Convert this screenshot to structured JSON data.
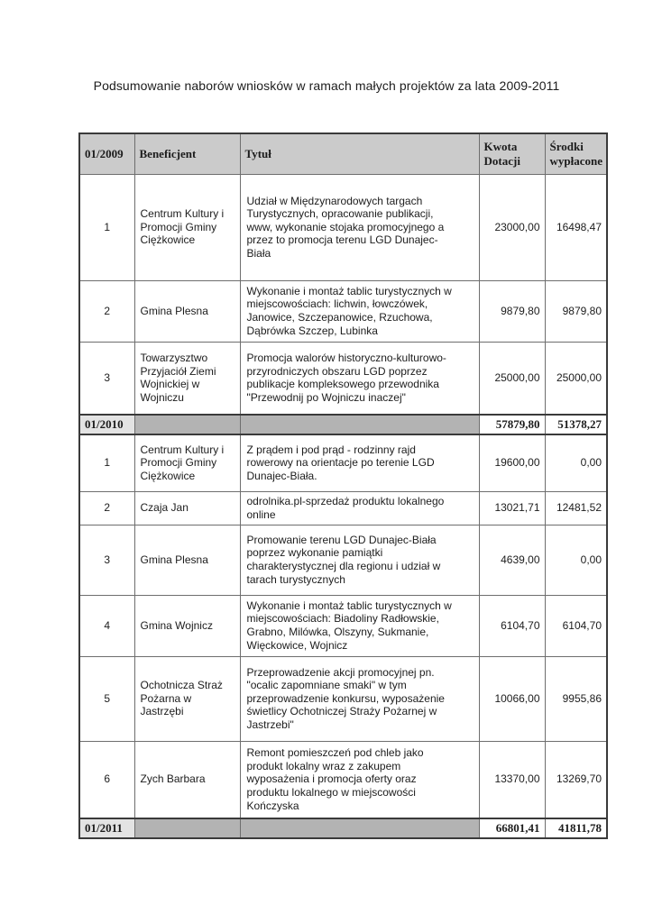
{
  "title": "Podsumowanie naborów wniosków w ramach małych projektów za lata 2009-2011",
  "table": {
    "header": {
      "period": "01/2009",
      "beneficiary": "Beneficjent",
      "project": "Tytuł",
      "grant": "Kwota Dotacji",
      "paid": "Środki wypłacone"
    },
    "rows_2009": [
      {
        "no": "1",
        "beneficiary": "Centrum Kultury i Promocji Gminy Ciężkowice",
        "project": "Udział w Międzynarodowych targach Turystycznych, opracowanie publikacji, www, wykonanie stojaka promocyjnego a przez to promocja terenu LGD Dunajec-Biała",
        "grant": "23000,00",
        "paid": "16498,47"
      },
      {
        "no": "2",
        "beneficiary": "Gmina Plesna",
        "project": "Wykonanie i montaż tablic turystycznych w miejscowościach: lichwin, łowczówek, Janowice, Szczepanowice, Rzuchowa, Dąbrówka Szczep, Lubinka",
        "grant": "9879,80",
        "paid": "9879,80"
      },
      {
        "no": "3",
        "beneficiary": "Towarzysztwo Przyjaciół Ziemi Wojnickiej w Wojniczu",
        "project": "Promocja walorów historyczno-kulturowo-przyrodniczych obszaru LGD poprzez publikacje kompleksowego przewodnika \"Przewodnij po Wojniczu inaczej\"",
        "grant": "25000,00",
        "paid": "25000,00"
      }
    ],
    "summary_2010": {
      "period": "01/2010",
      "grant": "57879,80",
      "paid": "51378,27"
    },
    "rows_2010": [
      {
        "no": "1",
        "beneficiary": "Centrum Kultury i Promocji Gminy Ciężkowice",
        "project": "Z prądem i pod prąd - rodzinny rajd rowerowy na orientacje po terenie LGD Dunajec-Biała.",
        "grant": "19600,00",
        "paid": "0,00"
      },
      {
        "no": "2",
        "beneficiary": "Czaja Jan",
        "project": "odrolnika.pl-sprzedaż produktu lokalnego online",
        "grant": "13021,71",
        "paid": "12481,52"
      },
      {
        "no": "3",
        "beneficiary": "Gmina Plesna",
        "project": "Promowanie terenu LGD Dunajec-Biała poprzez wykonanie pamiątki charakterystycznej dla regionu i udział w tarach turystycznych",
        "grant": "4639,00",
        "paid": "0,00"
      },
      {
        "no": "4",
        "beneficiary": "Gmina Wojnicz",
        "project": "Wykonanie i montaż tablic turystycznych w miejscowościach: Biadoliny Radłowskie, Grabno, Milówka, Olszyny, Sukmanie, Więckowice, Wojnicz",
        "grant": "6104,70",
        "paid": "6104,70"
      },
      {
        "no": "5",
        "beneficiary": "Ochotnicza Straż Pożarna w Jastrzębi",
        "project": "Przeprowadzenie akcji promocyjnej pn. \"ocalic zapomniane smaki\" w tym przeprowadzenie konkursu, wyposażenie świetlicy Ochotniczej Straży Pożarnej w Jastrzebi\"",
        "grant": "10066,00",
        "paid": "9955,86"
      },
      {
        "no": "6",
        "beneficiary": "Zych Barbara",
        "project": "Remont pomieszczeń pod chleb jako produkt lokalny wraz z zakupem wyposażenia i promocja oferty oraz produktu lokalnego w miejscowości Kończyska",
        "grant": "13370,00",
        "paid": "13269,70"
      }
    ],
    "summary_2011": {
      "period": "01/2011",
      "grant": "66801,41",
      "paid": "41811,78"
    }
  }
}
